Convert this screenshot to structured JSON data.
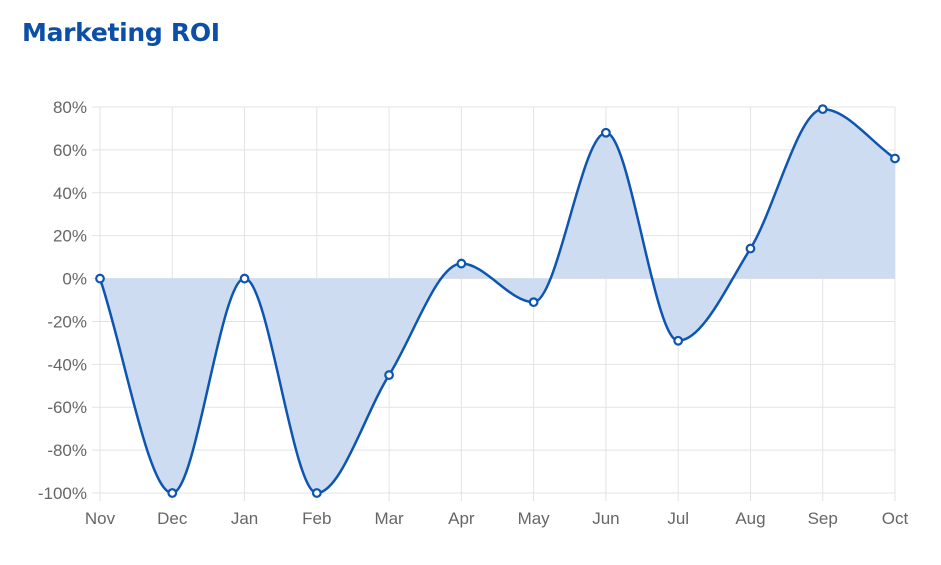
{
  "title": "Marketing ROI",
  "colors": {
    "line": "#0d55b0",
    "fill": "#cddcf0",
    "grid": "#e3e3e3",
    "title": "#0d4ea6",
    "tick": "#666666"
  },
  "chart_data": {
    "type": "area",
    "title": "Marketing ROI",
    "categories": [
      "Nov",
      "Dec",
      "Jan",
      "Feb",
      "Mar",
      "Apr",
      "May",
      "Jun",
      "Jul",
      "Aug",
      "Sep",
      "Oct"
    ],
    "series": [
      {
        "values": [
          0,
          -100,
          0,
          -100,
          -45,
          7,
          -11,
          68,
          -29,
          14,
          79,
          56
        ]
      }
    ],
    "ylim": [
      -100,
      80
    ],
    "yticks": [
      80,
      60,
      40,
      20,
      0,
      -20,
      -40,
      -60,
      -80,
      -100
    ],
    "ytick_labels": [
      "80%",
      "60%",
      "40%",
      "20%",
      "0%",
      "-20%",
      "-40%",
      "-60%",
      "-80%",
      "-100%"
    ],
    "xlabel": "",
    "ylabel": "",
    "grid": true,
    "fill_to": 0,
    "curve": "smooth"
  }
}
